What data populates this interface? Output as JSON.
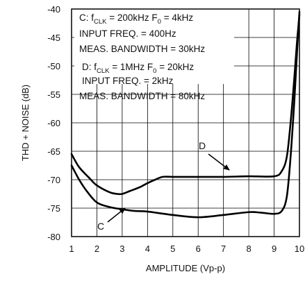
{
  "chart_data": {
    "type": "line",
    "title": "",
    "xlabel": "AMPLITUDE (Vp-p)",
    "ylabel": "THD + NOISE (dB)",
    "xlim": [
      1,
      10
    ],
    "ylim": [
      -80,
      -40
    ],
    "x_ticks": [
      "1",
      "2",
      "3",
      "4",
      "5",
      "6",
      "7",
      "8",
      "9",
      "10"
    ],
    "y_ticks": [
      "-40",
      "-45",
      "-50",
      "-55",
      "-60",
      "-65",
      "-70",
      "-75",
      "-80"
    ],
    "grid": true,
    "legend": "none",
    "series": [
      {
        "name": "C",
        "x": [
          1.0,
          1.3,
          1.6,
          2.0,
          2.5,
          3.0,
          3.5,
          4.0,
          5.0,
          6.0,
          7.0,
          8.0,
          8.5,
          9.0,
          9.3,
          9.5,
          9.65,
          9.8,
          9.9,
          10.0
        ],
        "y": [
          -67.5,
          -70.0,
          -72.0,
          -74.0,
          -74.8,
          -75.2,
          -75.5,
          -75.6,
          -76.2,
          -76.6,
          -76.2,
          -75.7,
          -75.8,
          -76.0,
          -75.5,
          -73.0,
          -66.0,
          -56.0,
          -48.0,
          -40.5
        ]
      },
      {
        "name": "D",
        "x": [
          1.0,
          1.3,
          1.7,
          2.0,
          2.5,
          2.8,
          3.0,
          3.3,
          3.7,
          4.0,
          4.3,
          4.6,
          5.0,
          6.0,
          7.0,
          8.0,
          9.0,
          9.3,
          9.5,
          9.65,
          9.8,
          9.9,
          10.0
        ],
        "y": [
          -65.5,
          -67.8,
          -69.7,
          -71.0,
          -72.2,
          -72.5,
          -72.5,
          -72.0,
          -71.3,
          -70.6,
          -70.0,
          -69.5,
          -69.5,
          -69.5,
          -69.5,
          -69.4,
          -69.4,
          -68.5,
          -66.0,
          -60.0,
          -52.0,
          -46.0,
          -41.0
        ]
      }
    ],
    "annotations": {
      "c_line1_main": "C: f",
      "c_line1_sub": "CLK",
      "c_line1_rest": " = 200kHz  F",
      "c_line1_sub2": "0",
      "c_line1_tail": " = 4kHz",
      "c_line2": "INPUT FREQ. = 400Hz",
      "c_line3": "MEAS. BANDWIDTH = 30kHz",
      "d_line1_main": "D:  f",
      "d_line1_sub": "CLK",
      "d_line1_rest": " = 1MHz  F",
      "d_line1_sub2": "0",
      "d_line1_tail": " = 20kHz",
      "d_line2": "INPUT FREQ. = 2kHz",
      "d_line3": "MEAS. BANDWIDTH = 80kHz",
      "label_c": "C",
      "label_d": "D"
    }
  }
}
